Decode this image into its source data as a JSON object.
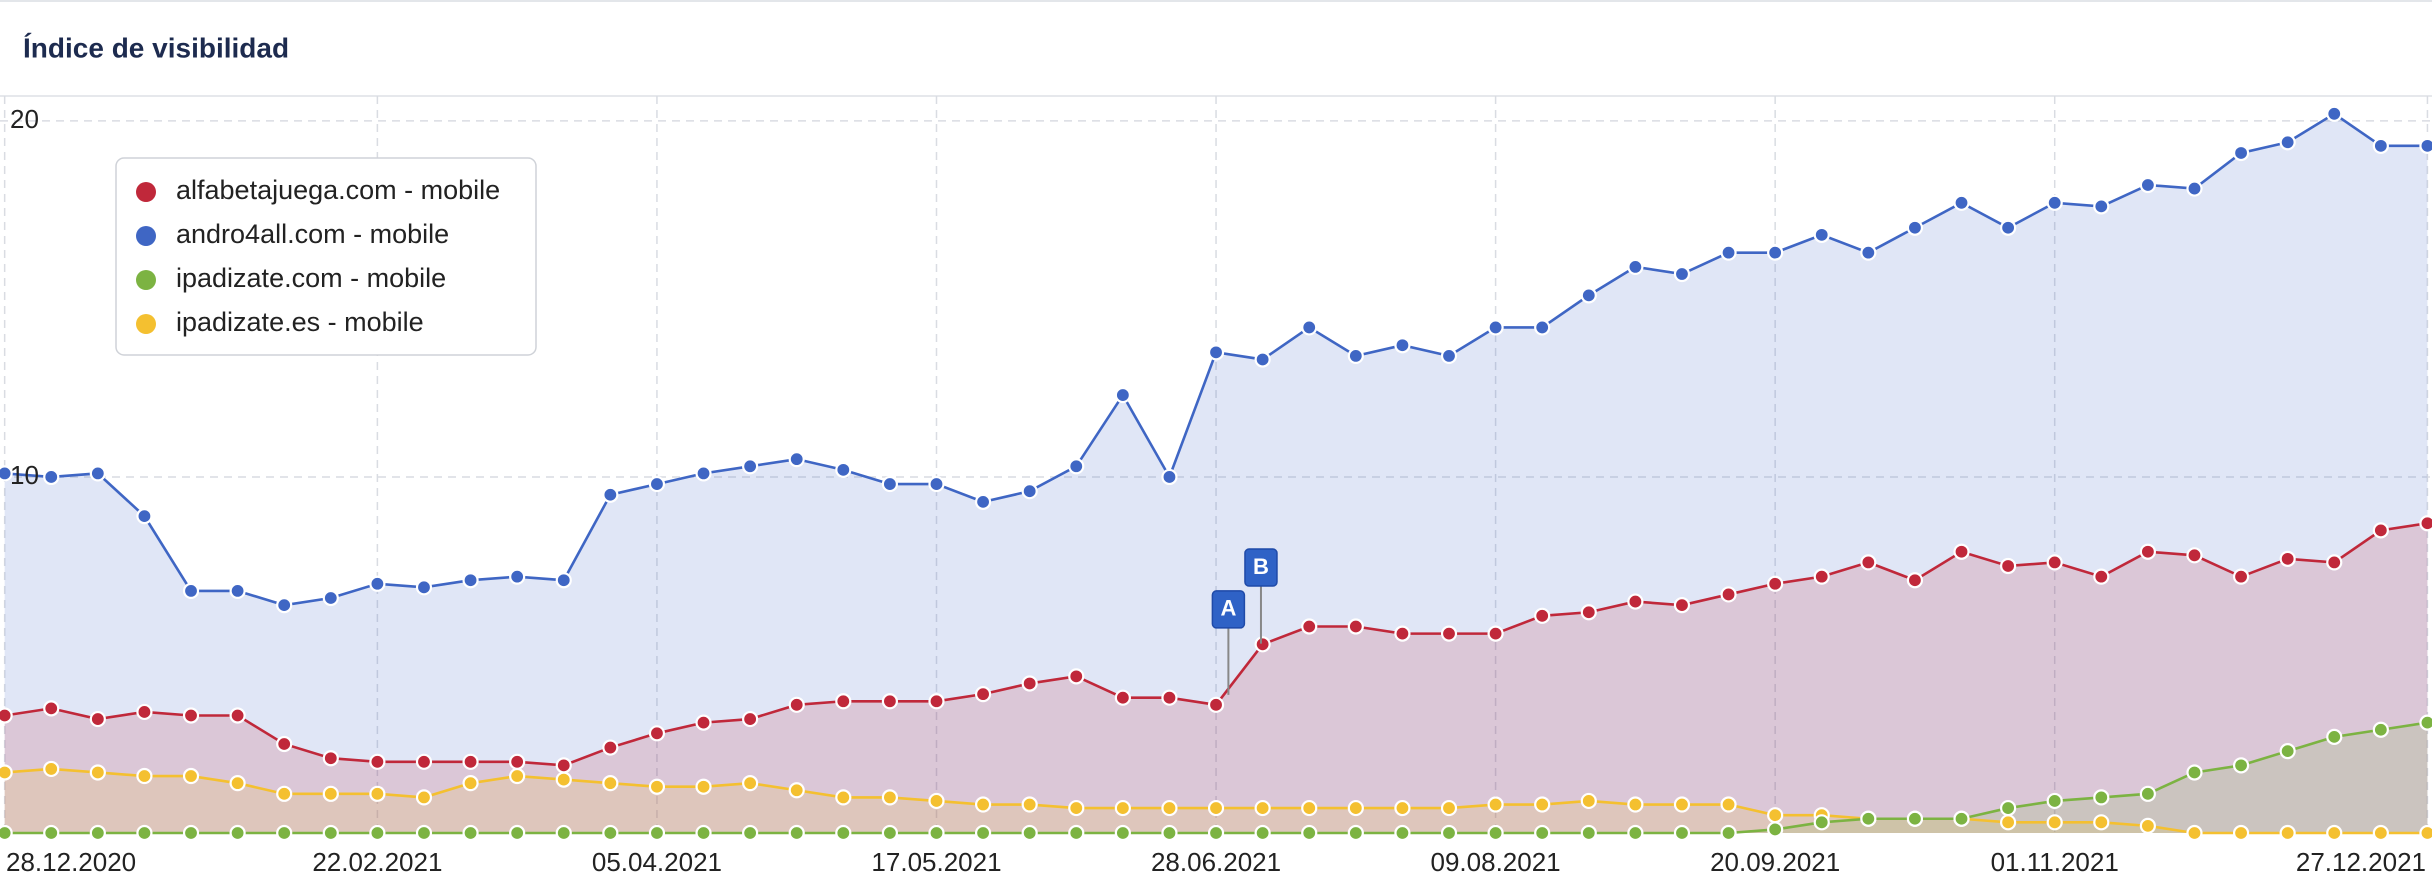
{
  "chart_data": {
    "type": "area",
    "title": "Índice de visibilidad",
    "categories": [
      "28.12.2020",
      null,
      null,
      null,
      null,
      null,
      null,
      null,
      "22.02.2021",
      null,
      null,
      null,
      null,
      null,
      "05.04.2021",
      null,
      null,
      null,
      null,
      null,
      "17.05.2021",
      null,
      null,
      null,
      null,
      null,
      "28.06.2021",
      null,
      null,
      null,
      null,
      null,
      "09.08.2021",
      null,
      null,
      null,
      null,
      null,
      "20.09.2021",
      null,
      null,
      null,
      null,
      null,
      "01.11.2021",
      null,
      null,
      null,
      null,
      null,
      null,
      null,
      "27.12.2021"
    ],
    "series": [
      {
        "name": "alfabetajuega.com - mobile",
        "color": "#c0283a",
        "values": [
          3.3,
          3.5,
          3.2,
          3.4,
          3.3,
          3.3,
          2.5,
          2.1,
          2.0,
          2.0,
          2.0,
          2.0,
          1.9,
          2.4,
          2.8,
          3.1,
          3.2,
          3.6,
          3.7,
          3.7,
          3.7,
          3.9,
          4.2,
          4.4,
          3.8,
          3.8,
          3.6,
          5.3,
          5.8,
          5.8,
          5.6,
          5.6,
          5.6,
          6.1,
          6.2,
          6.5,
          6.4,
          6.7,
          7.0,
          7.2,
          7.6,
          7.1,
          7.9,
          7.5,
          7.6,
          7.2,
          7.9,
          7.8,
          7.2,
          7.7,
          7.6,
          8.5,
          8.7
        ]
      },
      {
        "name": "andro4all.com - mobile",
        "color": "#3f66c4",
        "values": [
          10.1,
          10.0,
          10.1,
          8.9,
          6.8,
          6.8,
          6.4,
          6.6,
          7.0,
          6.9,
          7.1,
          7.2,
          7.1,
          9.5,
          9.8,
          10.1,
          10.3,
          10.5,
          10.2,
          9.8,
          9.8,
          9.3,
          9.6,
          10.3,
          12.3,
          10.0,
          13.5,
          13.3,
          14.2,
          13.4,
          13.7,
          13.4,
          14.2,
          14.2,
          15.1,
          15.9,
          15.7,
          16.3,
          16.3,
          16.8,
          16.3,
          17.0,
          17.7,
          17.0,
          17.7,
          17.6,
          18.2,
          18.1,
          19.1,
          19.4,
          20.2,
          19.3,
          19.3
        ]
      },
      {
        "name": "ipadizate.com - mobile",
        "color": "#7cb342",
        "values": [
          0,
          0,
          0,
          0,
          0,
          0,
          0,
          0,
          0,
          0,
          0,
          0,
          0,
          0,
          0,
          0,
          0,
          0,
          0,
          0,
          0,
          0,
          0,
          0,
          0,
          0,
          0,
          0,
          0,
          0,
          0,
          0,
          0,
          0,
          0,
          0,
          0,
          0,
          0.1,
          0.3,
          0.4,
          0.4,
          0.4,
          0.7,
          0.9,
          1.0,
          1.1,
          1.7,
          1.9,
          2.3,
          2.7,
          2.9,
          3.1
        ]
      },
      {
        "name": "ipadizate.es - mobile",
        "color": "#f4c030",
        "values": [
          1.7,
          1.8,
          1.7,
          1.6,
          1.6,
          1.4,
          1.1,
          1.1,
          1.1,
          1.0,
          1.4,
          1.6,
          1.5,
          1.4,
          1.3,
          1.3,
          1.4,
          1.2,
          1.0,
          1.0,
          0.9,
          0.8,
          0.8,
          0.7,
          0.7,
          0.7,
          0.7,
          0.7,
          0.7,
          0.7,
          0.7,
          0.7,
          0.8,
          0.8,
          0.9,
          0.8,
          0.8,
          0.8,
          0.5,
          0.5,
          0.4,
          0.4,
          0.4,
          0.3,
          0.3,
          0.3,
          0.2,
          0,
          0,
          0,
          0,
          0,
          0
        ]
      }
    ],
    "ylim": [
      0,
      20.7
    ],
    "yticks": [
      10,
      20
    ],
    "grid": true,
    "legend": "top-left",
    "annotations": [
      {
        "label": "A"
      },
      {
        "label": "B"
      }
    ]
  }
}
